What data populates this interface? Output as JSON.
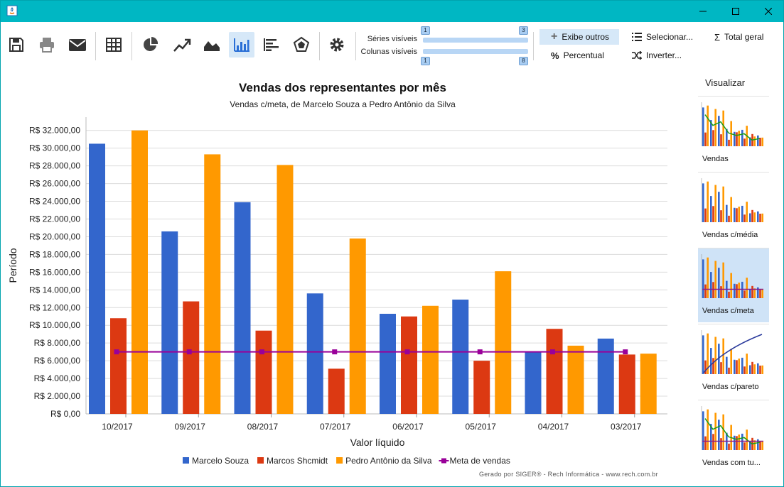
{
  "window": {
    "title": ""
  },
  "toolbar": {
    "series_label": "Séries visíveis",
    "columns_label": "Colunas visíveis",
    "series_min": "1",
    "series_max": "3",
    "columns_min": "1",
    "columns_max": "8",
    "show_others_label": "Exibe outros",
    "percent_label": "Percentual",
    "select_label": "Selecionar...",
    "invert_label": "Inverter...",
    "total_label": "Total geral"
  },
  "sidebar": {
    "title": "Visualizar",
    "items": [
      {
        "label": "Vendas"
      },
      {
        "label": "Vendas c/média"
      },
      {
        "label": "Vendas c/meta"
      },
      {
        "label": "Vendas c/pareto"
      },
      {
        "label": "Vendas com tu..."
      }
    ]
  },
  "chart_data": {
    "type": "bar",
    "title": "Vendas dos representantes por mês",
    "subtitle": "Vendas c/meta, de Marcelo Souza a Pedro Antônio da Silva",
    "xlabel": "Valor líquido",
    "ylabel": "Período",
    "categories": [
      "10/2017",
      "09/2017",
      "08/2017",
      "07/2017",
      "06/2017",
      "05/2017",
      "04/2017",
      "03/2017"
    ],
    "series": [
      {
        "name": "Marcelo Souza",
        "color": "#3366cc",
        "values": [
          30500,
          20600,
          23900,
          13600,
          11300,
          12900,
          7000,
          8500
        ]
      },
      {
        "name": "Marcos Shcmidt",
        "color": "#dc3912",
        "values": [
          10800,
          12700,
          9400,
          5100,
          11000,
          6000,
          9600,
          6700
        ]
      },
      {
        "name": "Pedro Antônio da Silva",
        "color": "#ff9900",
        "values": [
          32000,
          29300,
          28100,
          19800,
          12200,
          16100,
          7700,
          6800
        ]
      }
    ],
    "line_series": {
      "name": "Meta de vendas",
      "color": "#990099",
      "values": [
        7000,
        7000,
        7000,
        7000,
        7000,
        7000,
        7000,
        7000
      ]
    },
    "y_ticks": [
      "R$ 0,00",
      "R$ 2.000,00",
      "R$ 4.000,00",
      "R$ 6.000,00",
      "R$ 8.000,00",
      "R$ 10.000,00",
      "R$ 12.000,00",
      "R$ 14.000,00",
      "R$ 16.000,00",
      "R$ 18.000,00",
      "R$ 20.000,00",
      "R$ 22.000,00",
      "R$ 24.000,00",
      "R$ 26.000,00",
      "R$ 28.000,00",
      "R$ 30.000,00",
      "R$ 32.000,00"
    ],
    "ylim": [
      0,
      33500
    ],
    "grid": true,
    "legend_position": "bottom"
  },
  "footer": {
    "text": "Gerado por SIGER® - Rech Informática - www.rech.com.br"
  }
}
